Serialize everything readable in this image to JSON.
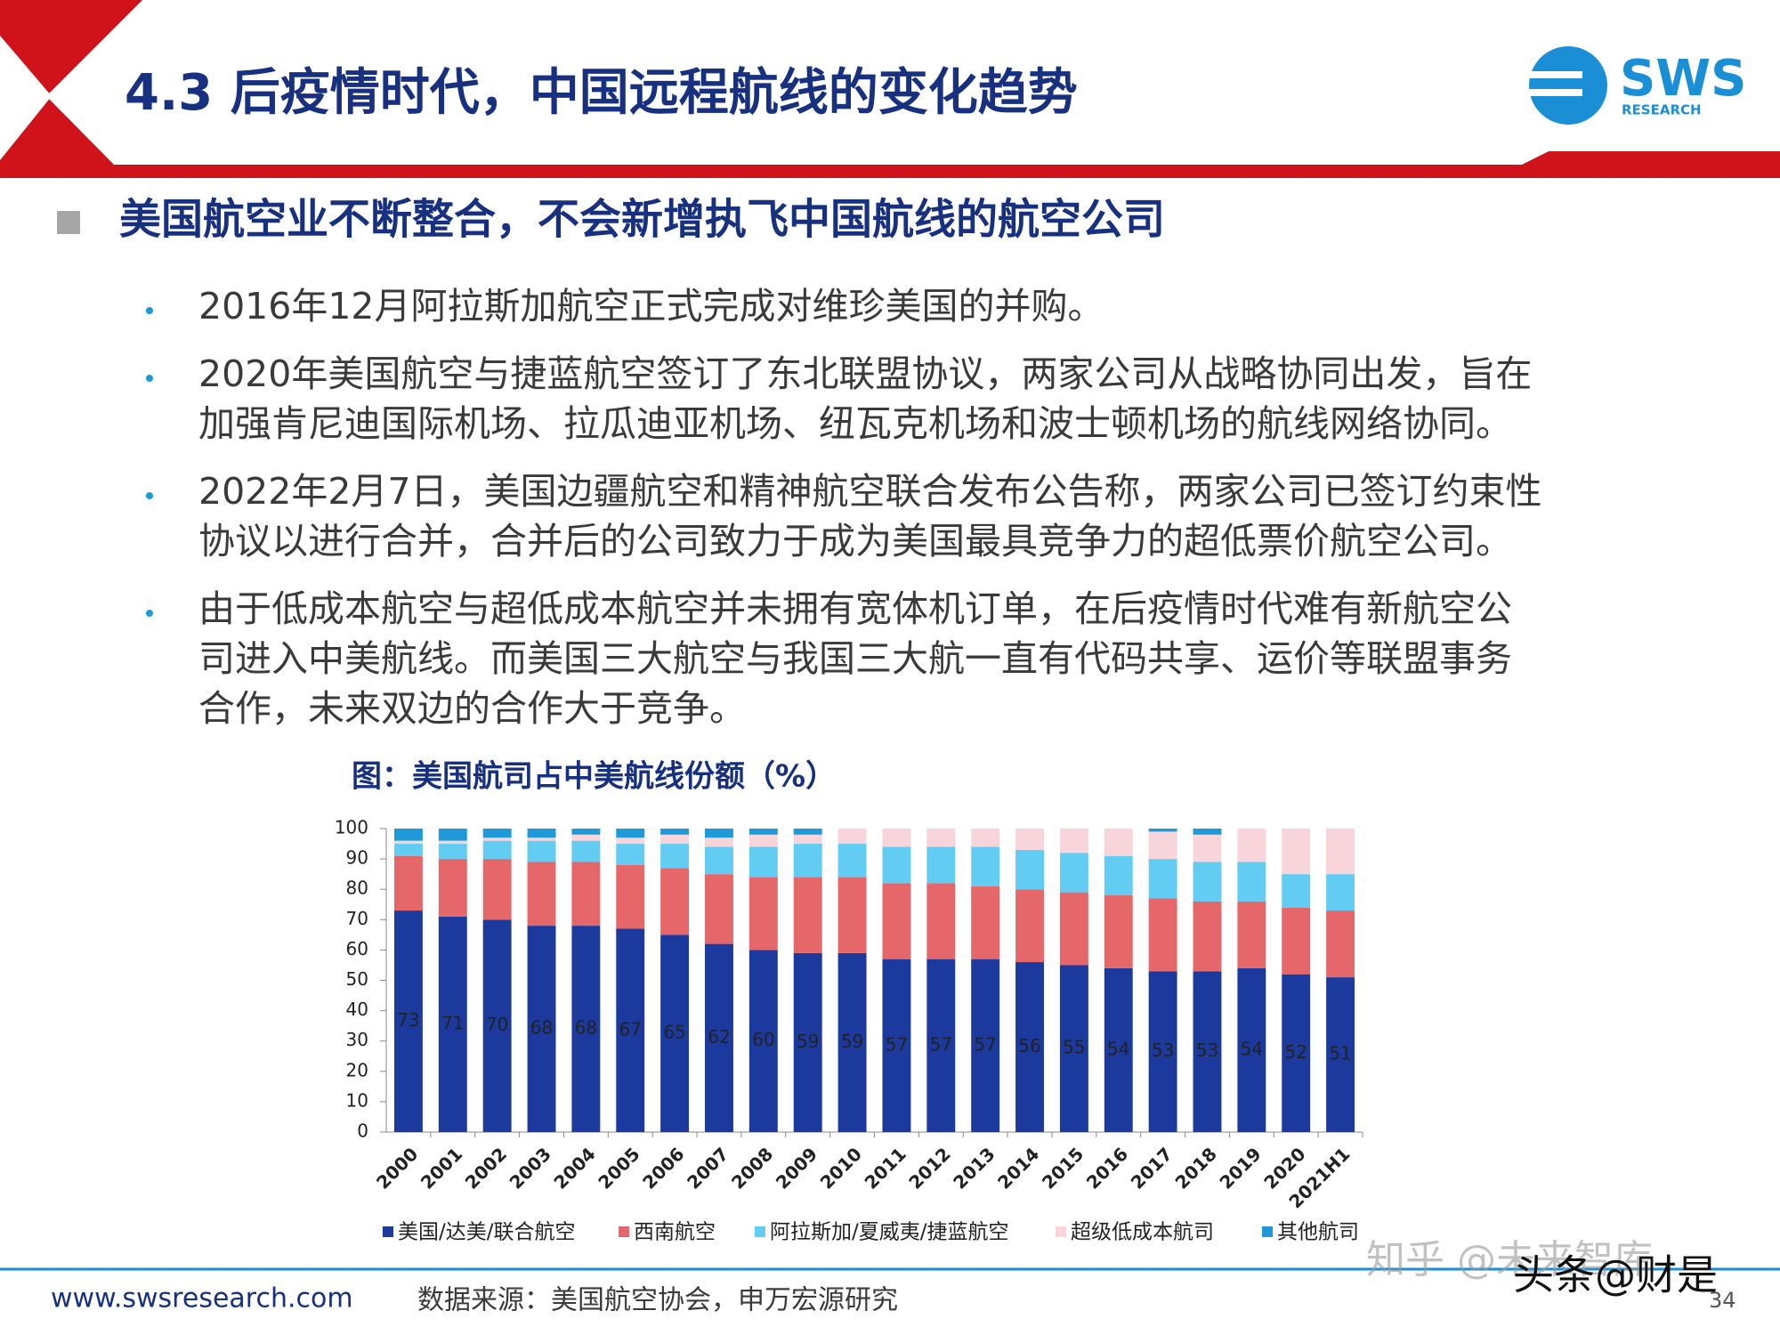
{
  "header": {
    "title": "4.3 后疫情时代，中国远程航线的变化趋势",
    "logo": "SWS",
    "logo_sub": "RESEARCH"
  },
  "heading": "美国航空业不断整合，不会新增执飞中国航线的航空公司",
  "bullets": [
    [
      "2016年12月阿拉斯加航空正式完成对维珍美国的并购。"
    ],
    [
      "2020年美国航空与捷蓝航空签订了东北联盟协议，两家公司从战略协同出发，旨在",
      "加强肯尼迪国际机场、拉瓜迪亚机场、纽瓦克机场和波士顿机场的航线网络协同。"
    ],
    [
      "2022年2月7日，美国边疆航空和精神航空联合发布公告称，两家公司已签订约束性",
      "协议以进行合并，合并后的公司致力于成为美国最具竞争力的超低票价航空公司。"
    ],
    [
      "由于低成本航空与超低成本航空并未拥有宽体机订单，在后疫情时代难有新航空公",
      "司进入中美航线。而美国三大航空与我国三大航一直有代码共享、运价等联盟事务",
      "合作，未来双边的合作大于竞争。"
    ]
  ],
  "chart_data": {
    "type": "stacked_bar",
    "title": "图：美国航司占中美航线份额（%）",
    "categories": [
      "2000",
      "2001",
      "2002",
      "2003",
      "2004",
      "2005",
      "2006",
      "2007",
      "2008",
      "2009",
      "2010",
      "2011",
      "2012",
      "2013",
      "2014",
      "2015",
      "2016",
      "2017",
      "2018",
      "2019",
      "2020",
      "2021H1"
    ],
    "series": [
      {
        "name": "美国/达美/联合航空",
        "color": "#1c3a9e",
        "values": [
          73,
          71,
          70,
          68,
          68,
          67,
          65,
          62,
          60,
          59,
          59,
          57,
          57,
          57,
          56,
          55,
          54,
          53,
          53,
          54,
          52,
          51
        ],
        "data_labels": true
      },
      {
        "name": "西南航空",
        "color": "#e5676a",
        "values": [
          18,
          19,
          20,
          21,
          21,
          21,
          22,
          23,
          24,
          25,
          25,
          25,
          25,
          24,
          24,
          24,
          24,
          24,
          23,
          22,
          22,
          22
        ]
      },
      {
        "name": "阿拉斯加/夏威夷/捷蓝航空",
        "color": "#62ccf2",
        "values": [
          4,
          5,
          6,
          7,
          7,
          7,
          8,
          9,
          10,
          11,
          11,
          12,
          12,
          13,
          13,
          13,
          13,
          13,
          13,
          13,
          11,
          12
        ]
      },
      {
        "name": "超级低成本航司",
        "color": "#f8d5da",
        "values": [
          1,
          1,
          1,
          1,
          2,
          2,
          3,
          3,
          4,
          3,
          5,
          6,
          6,
          6,
          7,
          8,
          9,
          9,
          9,
          11,
          15,
          15
        ]
      },
      {
        "name": "其他航司",
        "color": "#1e9ad8",
        "values": [
          4,
          4,
          3,
          3,
          2,
          3,
          2,
          3,
          2,
          2,
          0,
          0,
          0,
          0,
          0,
          0,
          0,
          1,
          2,
          0,
          0,
          0
        ]
      }
    ],
    "ylim": [
      0,
      100
    ],
    "yticks": [
      0,
      10,
      20,
      30,
      40,
      50,
      60,
      70,
      80,
      90,
      100
    ]
  },
  "footer": {
    "website": "www.swsresearch.com",
    "source": "数据来源：美国航空协会，申万宏源研究",
    "page": "34"
  },
  "watermarks": [
    "知乎 @未来智库",
    "头条@财是"
  ]
}
